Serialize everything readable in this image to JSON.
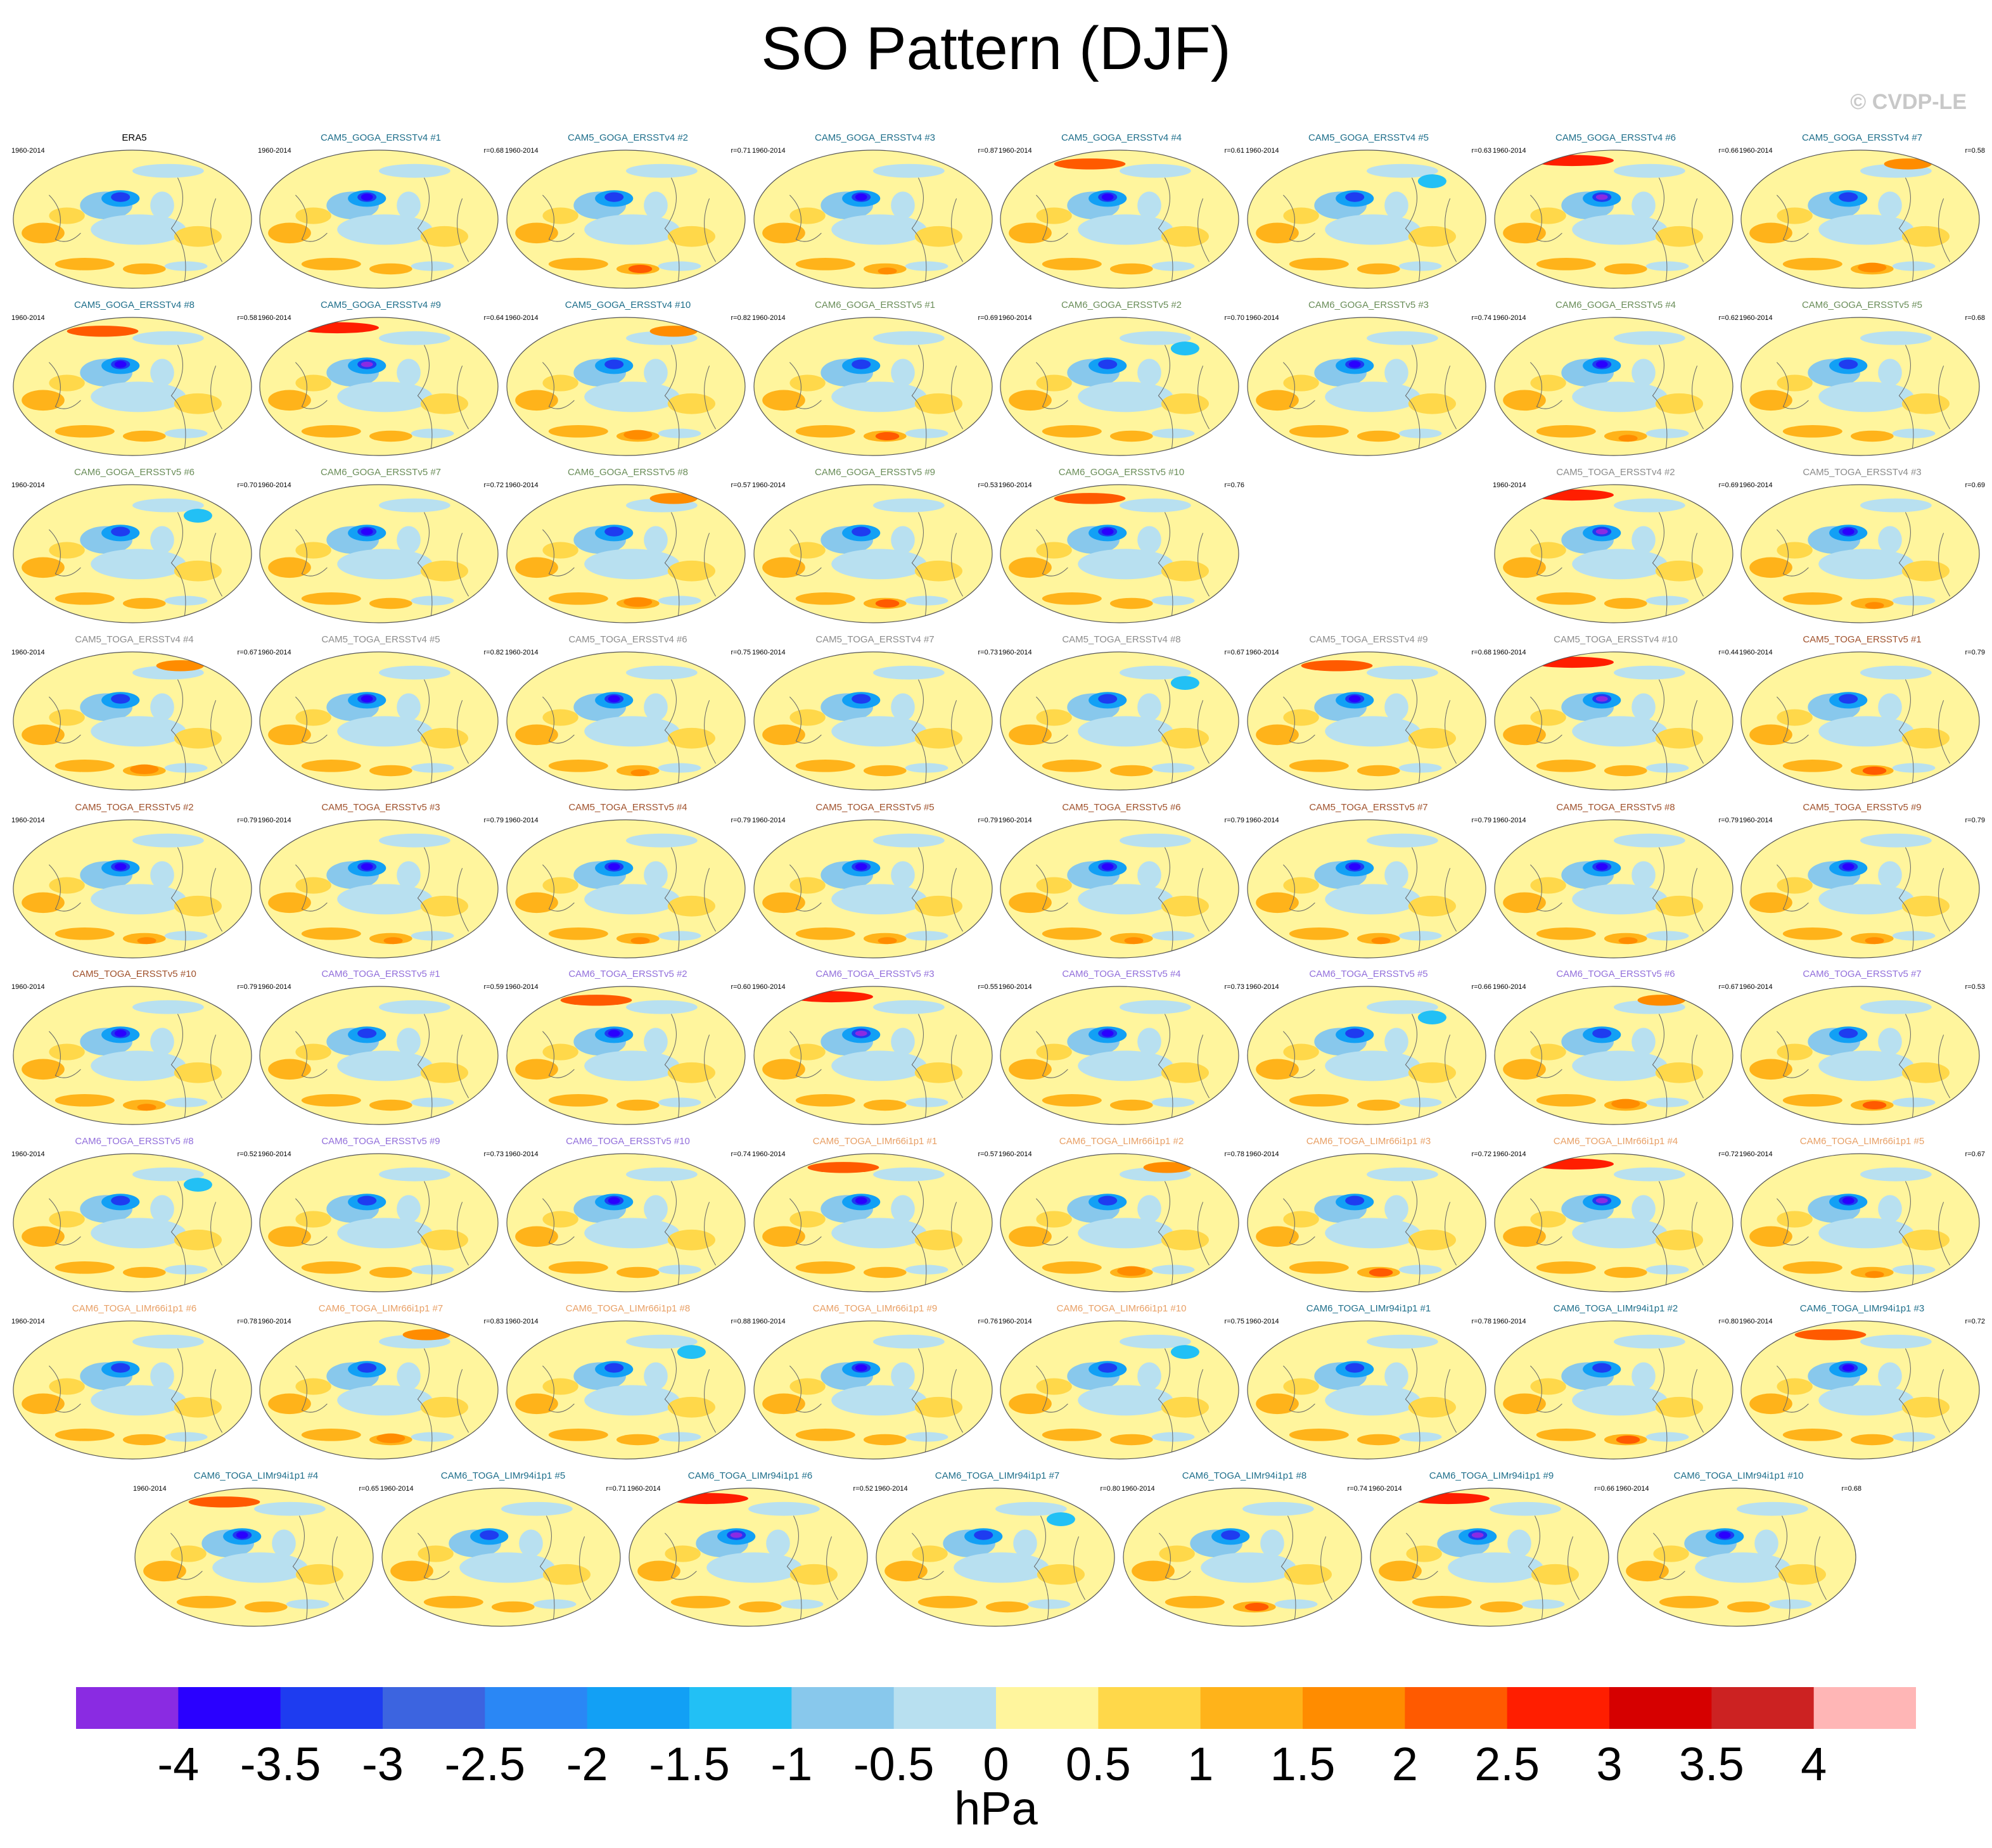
{
  "title": "SO Pattern (DJF)",
  "copyright": "© CVDP-LE",
  "years": "1960-2014",
  "chart_data": {
    "type": "heatmap",
    "title": "SO Pattern (DJF)",
    "description_units": "hPa",
    "colorbar": {
      "ticks": [
        "-4",
        "-3.5",
        "-3",
        "-2.5",
        "-2",
        "-1.5",
        "-1",
        "-0.5",
        "0",
        "0.5",
        "1",
        "1.5",
        "2",
        "2.5",
        "3",
        "3.5",
        "4"
      ],
      "units": "hPa",
      "colors": [
        "#8a2be2",
        "#2a00ff",
        "#1e3cf0",
        "#3c64e0",
        "#2a87f5",
        "#12a0f5",
        "#22c0f5",
        "#88c8ec",
        "#b8e0f0",
        "#fff59d",
        "#ffd84a",
        "#ffb31a",
        "#ff8c00",
        "#ff5a00",
        "#ff1e00",
        "#d60000",
        "#cc2222",
        "#ffb6b6"
      ]
    },
    "panels": [
      {
        "name": "ERA5",
        "r": "",
        "color": "#000000",
        "variant": 0
      },
      {
        "name": "CAM5_GOGA_ERSSTv4 #1",
        "r": "r=0.68",
        "color": "#1f6f8b",
        "variant": 1
      },
      {
        "name": "CAM5_GOGA_ERSSTv4 #2",
        "r": "r=0.71",
        "color": "#1f6f8b",
        "variant": 2
      },
      {
        "name": "CAM5_GOGA_ERSSTv4 #3",
        "r": "r=0.87",
        "color": "#1f6f8b",
        "variant": 3
      },
      {
        "name": "CAM5_GOGA_ERSSTv4 #4",
        "r": "r=0.61",
        "color": "#1f6f8b",
        "variant": 4
      },
      {
        "name": "CAM5_GOGA_ERSSTv4 #5",
        "r": "r=0.63",
        "color": "#1f6f8b",
        "variant": 5
      },
      {
        "name": "CAM5_GOGA_ERSSTv4 #6",
        "r": "r=0.66",
        "color": "#1f6f8b",
        "variant": 6
      },
      {
        "name": "CAM5_GOGA_ERSSTv4 #7",
        "r": "r=0.58",
        "color": "#1f6f8b",
        "variant": 7
      },
      {
        "name": "CAM5_GOGA_ERSSTv4 #8",
        "r": "r=0.58",
        "color": "#1f6f8b",
        "variant": 4
      },
      {
        "name": "CAM5_GOGA_ERSSTv4 #9",
        "r": "r=0.64",
        "color": "#1f6f8b",
        "variant": 6
      },
      {
        "name": "CAM5_GOGA_ERSSTv4 #10",
        "r": "r=0.82",
        "color": "#1f6f8b",
        "variant": 7
      },
      {
        "name": "CAM6_GOGA_ERSSTv5 #1",
        "r": "r=0.69",
        "color": "#6b8e5a",
        "variant": 2
      },
      {
        "name": "CAM6_GOGA_ERSSTv5 #2",
        "r": "r=0.70",
        "color": "#6b8e5a",
        "variant": 5
      },
      {
        "name": "CAM6_GOGA_ERSSTv5 #3",
        "r": "r=0.74",
        "color": "#6b8e5a",
        "variant": 1
      },
      {
        "name": "CAM6_GOGA_ERSSTv5 #4",
        "r": "r=0.62",
        "color": "#6b8e5a",
        "variant": 3
      },
      {
        "name": "CAM6_GOGA_ERSSTv5 #5",
        "r": "r=0.68",
        "color": "#6b8e5a",
        "variant": 0
      },
      {
        "name": "CAM6_GOGA_ERSSTv5 #6",
        "r": "r=0.70",
        "color": "#6b8e5a",
        "variant": 5
      },
      {
        "name": "CAM6_GOGA_ERSSTv5 #7",
        "r": "r=0.72",
        "color": "#6b8e5a",
        "variant": 1
      },
      {
        "name": "CAM6_GOGA_ERSSTv5 #8",
        "r": "r=0.57",
        "color": "#6b8e5a",
        "variant": 7
      },
      {
        "name": "CAM6_GOGA_ERSSTv5 #9",
        "r": "r=0.53",
        "color": "#6b8e5a",
        "variant": 2
      },
      {
        "name": "CAM6_GOGA_ERSSTv5 #10",
        "r": "r=0.76",
        "color": "#6b8e5a",
        "variant": 4
      },
      {
        "name": "CAM5_TOGA_ERSSTv4 #2",
        "r": "r=0.69",
        "color": "#8c8c8c",
        "variant": 6
      },
      {
        "name": "CAM5_TOGA_ERSSTv4 #3",
        "r": "r=0.69",
        "color": "#8c8c8c",
        "variant": 3
      },
      {
        "name": "CAM5_TOGA_ERSSTv4 #4",
        "r": "r=0.67",
        "color": "#8c8c8c",
        "variant": 7
      },
      {
        "name": "CAM5_TOGA_ERSSTv4 #5",
        "r": "r=0.82",
        "color": "#8c8c8c",
        "variant": 1
      },
      {
        "name": "CAM5_TOGA_ERSSTv4 #6",
        "r": "r=0.75",
        "color": "#8c8c8c",
        "variant": 3
      },
      {
        "name": "CAM5_TOGA_ERSSTv4 #7",
        "r": "r=0.73",
        "color": "#8c8c8c",
        "variant": 0
      },
      {
        "name": "CAM5_TOGA_ERSSTv4 #8",
        "r": "r=0.67",
        "color": "#8c8c8c",
        "variant": 5
      },
      {
        "name": "CAM5_TOGA_ERSSTv4 #9",
        "r": "r=0.68",
        "color": "#8c8c8c",
        "variant": 4
      },
      {
        "name": "CAM5_TOGA_ERSSTv4 #10",
        "r": "r=0.44",
        "color": "#8c8c8c",
        "variant": 6
      },
      {
        "name": "CAM5_TOGA_ERSSTv5 #1",
        "r": "r=0.79",
        "color": "#a0522d",
        "variant": 2
      },
      {
        "name": "CAM5_TOGA_ERSSTv5 #2",
        "r": "r=0.79",
        "color": "#a0522d",
        "variant": 3
      },
      {
        "name": "CAM5_TOGA_ERSSTv5 #3",
        "r": "r=0.79",
        "color": "#a0522d",
        "variant": 3
      },
      {
        "name": "CAM5_TOGA_ERSSTv5 #4",
        "r": "r=0.79",
        "color": "#a0522d",
        "variant": 3
      },
      {
        "name": "CAM5_TOGA_ERSSTv5 #5",
        "r": "r=0.79",
        "color": "#a0522d",
        "variant": 3
      },
      {
        "name": "CAM5_TOGA_ERSSTv5 #6",
        "r": "r=0.79",
        "color": "#a0522d",
        "variant": 3
      },
      {
        "name": "CAM5_TOGA_ERSSTv5 #7",
        "r": "r=0.79",
        "color": "#a0522d",
        "variant": 3
      },
      {
        "name": "CAM5_TOGA_ERSSTv5 #8",
        "r": "r=0.79",
        "color": "#a0522d",
        "variant": 3
      },
      {
        "name": "CAM5_TOGA_ERSSTv5 #9",
        "r": "r=0.79",
        "color": "#a0522d",
        "variant": 3
      },
      {
        "name": "CAM5_TOGA_ERSSTv5 #10",
        "r": "r=0.79",
        "color": "#a0522d",
        "variant": 3
      },
      {
        "name": "CAM6_TOGA_ERSSTv5 #1",
        "r": "r=0.59",
        "color": "#9370db",
        "variant": 0
      },
      {
        "name": "CAM6_TOGA_ERSSTv5 #2",
        "r": "r=0.60",
        "color": "#9370db",
        "variant": 4
      },
      {
        "name": "CAM6_TOGA_ERSSTv5 #3",
        "r": "r=0.55",
        "color": "#9370db",
        "variant": 6
      },
      {
        "name": "CAM6_TOGA_ERSSTv5 #4",
        "r": "r=0.73",
        "color": "#9370db",
        "variant": 1
      },
      {
        "name": "CAM6_TOGA_ERSSTv5 #5",
        "r": "r=0.66",
        "color": "#9370db",
        "variant": 5
      },
      {
        "name": "CAM6_TOGA_ERSSTv5 #6",
        "r": "r=0.67",
        "color": "#9370db",
        "variant": 7
      },
      {
        "name": "CAM6_TOGA_ERSSTv5 #7",
        "r": "r=0.53",
        "color": "#9370db",
        "variant": 2
      },
      {
        "name": "CAM6_TOGA_ERSSTv5 #8",
        "r": "r=0.52",
        "color": "#9370db",
        "variant": 5
      },
      {
        "name": "CAM6_TOGA_ERSSTv5 #9",
        "r": "r=0.73",
        "color": "#9370db",
        "variant": 0
      },
      {
        "name": "CAM6_TOGA_ERSSTv5 #10",
        "r": "r=0.74",
        "color": "#9370db",
        "variant": 1
      },
      {
        "name": "CAM6_TOGA_LIMr66i1p1 #1",
        "r": "r=0.57",
        "color": "#e8a066",
        "variant": 4
      },
      {
        "name": "CAM6_TOGA_LIMr66i1p1 #2",
        "r": "r=0.78",
        "color": "#e8a066",
        "variant": 7
      },
      {
        "name": "CAM6_TOGA_LIMr66i1p1 #3",
        "r": "r=0.72",
        "color": "#e8a066",
        "variant": 2
      },
      {
        "name": "CAM6_TOGA_LIMr66i1p1 #4",
        "r": "r=0.72",
        "color": "#e8a066",
        "variant": 6
      },
      {
        "name": "CAM6_TOGA_LIMr66i1p1 #5",
        "r": "r=0.67",
        "color": "#e8a066",
        "variant": 3
      },
      {
        "name": "CAM6_TOGA_LIMr66i1p1 #6",
        "r": "r=0.78",
        "color": "#e8a066",
        "variant": 0
      },
      {
        "name": "CAM6_TOGA_LIMr66i1p1 #7",
        "r": "r=0.83",
        "color": "#e8a066",
        "variant": 7
      },
      {
        "name": "CAM6_TOGA_LIMr66i1p1 #8",
        "r": "r=0.88",
        "color": "#e8a066",
        "variant": 5
      },
      {
        "name": "CAM6_TOGA_LIMr66i1p1 #9",
        "r": "r=0.76",
        "color": "#e8a066",
        "variant": 1
      },
      {
        "name": "CAM6_TOGA_LIMr66i1p1 #10",
        "r": "r=0.75",
        "color": "#e8a066",
        "variant": 5
      },
      {
        "name": "CAM6_TOGA_LIMr94i1p1 #1",
        "r": "r=0.78",
        "color": "#1f6f8b",
        "variant": 0
      },
      {
        "name": "CAM6_TOGA_LIMr94i1p1 #2",
        "r": "r=0.80",
        "color": "#1f6f8b",
        "variant": 2
      },
      {
        "name": "CAM6_TOGA_LIMr94i1p1 #3",
        "r": "r=0.72",
        "color": "#1f6f8b",
        "variant": 4
      },
      {
        "name": "CAM6_TOGA_LIMr94i1p1 #4",
        "r": "r=0.65",
        "color": "#1f6f8b",
        "variant": 4
      },
      {
        "name": "CAM6_TOGA_LIMr94i1p1 #5",
        "r": "r=0.71",
        "color": "#1f6f8b",
        "variant": 0
      },
      {
        "name": "CAM6_TOGA_LIMr94i1p1 #6",
        "r": "r=0.52",
        "color": "#1f6f8b",
        "variant": 6
      },
      {
        "name": "CAM6_TOGA_LIMr94i1p1 #7",
        "r": "r=0.80",
        "color": "#1f6f8b",
        "variant": 5
      },
      {
        "name": "CAM6_TOGA_LIMr94i1p1 #8",
        "r": "r=0.74",
        "color": "#1f6f8b",
        "variant": 2
      },
      {
        "name": "CAM6_TOGA_LIMr94i1p1 #9",
        "r": "r=0.66",
        "color": "#1f6f8b",
        "variant": 6
      },
      {
        "name": "CAM6_TOGA_LIMr94i1p1 #10",
        "r": "r=0.68",
        "color": "#1f6f8b",
        "variant": 1
      }
    ]
  }
}
